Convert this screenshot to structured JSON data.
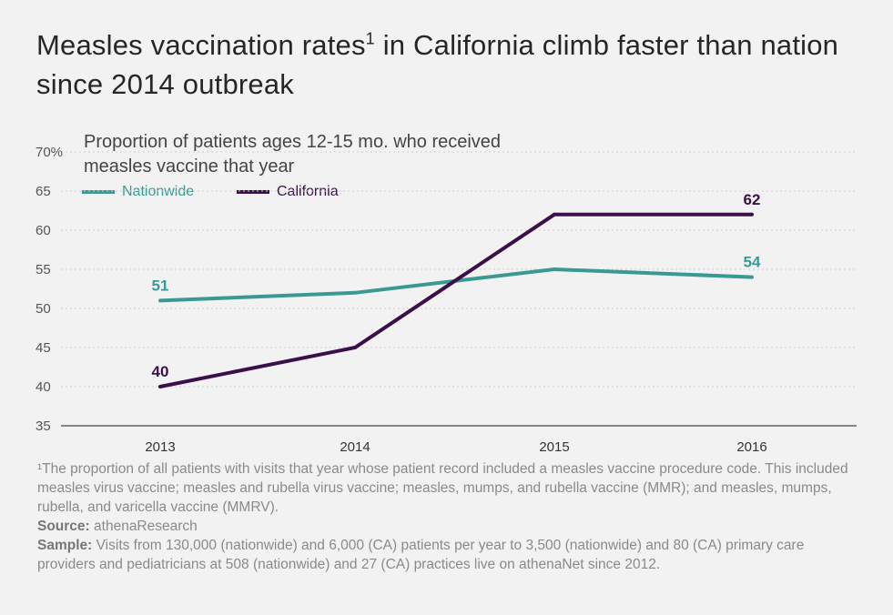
{
  "title": "Measles vaccination rates",
  "title_sup": "1",
  "title_rest": " in California climb faster than nation since 2014 outbreak",
  "subtitle": "Proportion of patients ages 12-15 mo. who received measles vaccine that year",
  "footnote": "¹The proportion of all patients with visits that year whose patient record included a measles vaccine procedure code. This included measles virus vaccine; measles and rubella virus vaccine; measles, mumps, and rubella vaccine (MMR); and measles, mumps, rubella, and varicella vaccine (MMRV).",
  "source_label": "Source:",
  "source_text": " athenaResearch",
  "sample_label": "Sample:",
  "sample_text": " Visits from 130,000 (nationwide) and 6,000 (CA) patients per year to 3,500 (nationwide) and 80 (CA) primary care providers and pediatricians at 508 (nationwide) and 27 (CA) practices live on athenaNet since 2012.",
  "colors": {
    "nationwide": "#3a9a93",
    "california": "#3b1049",
    "axis": "#555555",
    "grid": "#cfcfcf",
    "background": "#f2f2f2"
  },
  "chart_data": {
    "type": "line",
    "categories": [
      "2013",
      "2014",
      "2015",
      "2016"
    ],
    "ylim": [
      35,
      70
    ],
    "yticks": [
      35,
      40,
      45,
      50,
      55,
      60,
      65,
      70
    ],
    "ytick_labels": [
      "35",
      "40",
      "45",
      "50",
      "55",
      "60",
      "65",
      "70%"
    ],
    "grid": true,
    "legend": "top-left",
    "series": [
      {
        "name": "Nationwide",
        "values": [
          51,
          52,
          55,
          54
        ],
        "labels": [
          "51",
          null,
          null,
          "54"
        ],
        "color": "#3a9a93"
      },
      {
        "name": "California",
        "values": [
          40,
          45,
          62,
          62
        ],
        "labels": [
          "40",
          null,
          null,
          "62"
        ],
        "color": "#3b1049"
      }
    ]
  }
}
